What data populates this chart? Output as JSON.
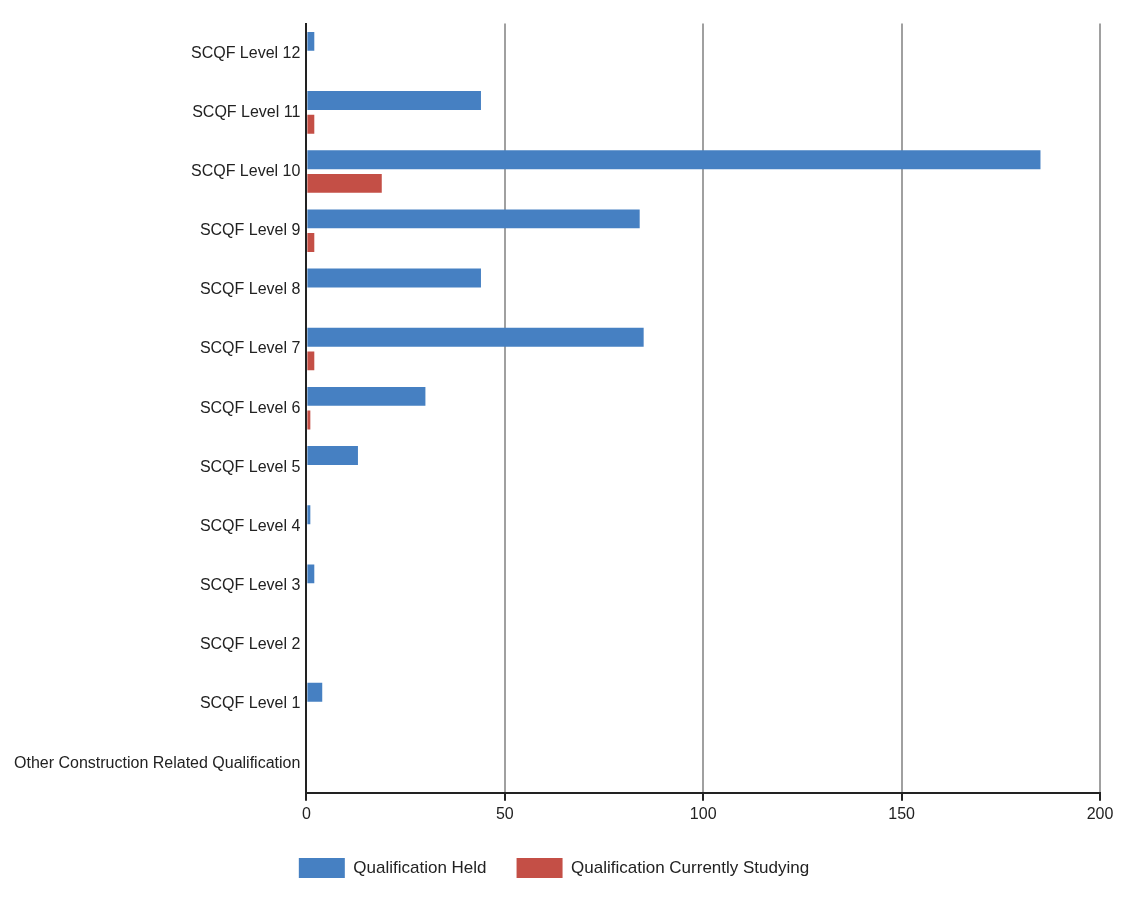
{
  "chart_data": {
    "type": "bar",
    "orientation": "horizontal",
    "categories": [
      "SCQF Level 12",
      "SCQF Level 11",
      "SCQF Level 10",
      "SCQF Level 9",
      "SCQF Level 8",
      "SCQF Level 7",
      "SCQF Level 6",
      "SCQF Level 5",
      "SCQF Level 4",
      "SCQF Level 3",
      "SCQF Level 2",
      "SCQF Level 1",
      "Other Construction Related Qualification"
    ],
    "series": [
      {
        "name": "Qualification Held",
        "color": "#4680c2",
        "values": [
          2,
          44,
          185,
          84,
          44,
          85,
          30,
          13,
          1,
          2,
          0,
          4,
          0
        ]
      },
      {
        "name": "Qualification Currently Studying",
        "color": "#c44f46",
        "values": [
          0,
          2,
          19,
          2,
          0,
          2,
          1,
          0,
          0,
          0,
          0,
          0,
          0
        ]
      }
    ],
    "xlim": [
      0,
      200
    ],
    "xticks": [
      0,
      50,
      100,
      150,
      200
    ],
    "grid": "x",
    "legend": "bottom"
  }
}
